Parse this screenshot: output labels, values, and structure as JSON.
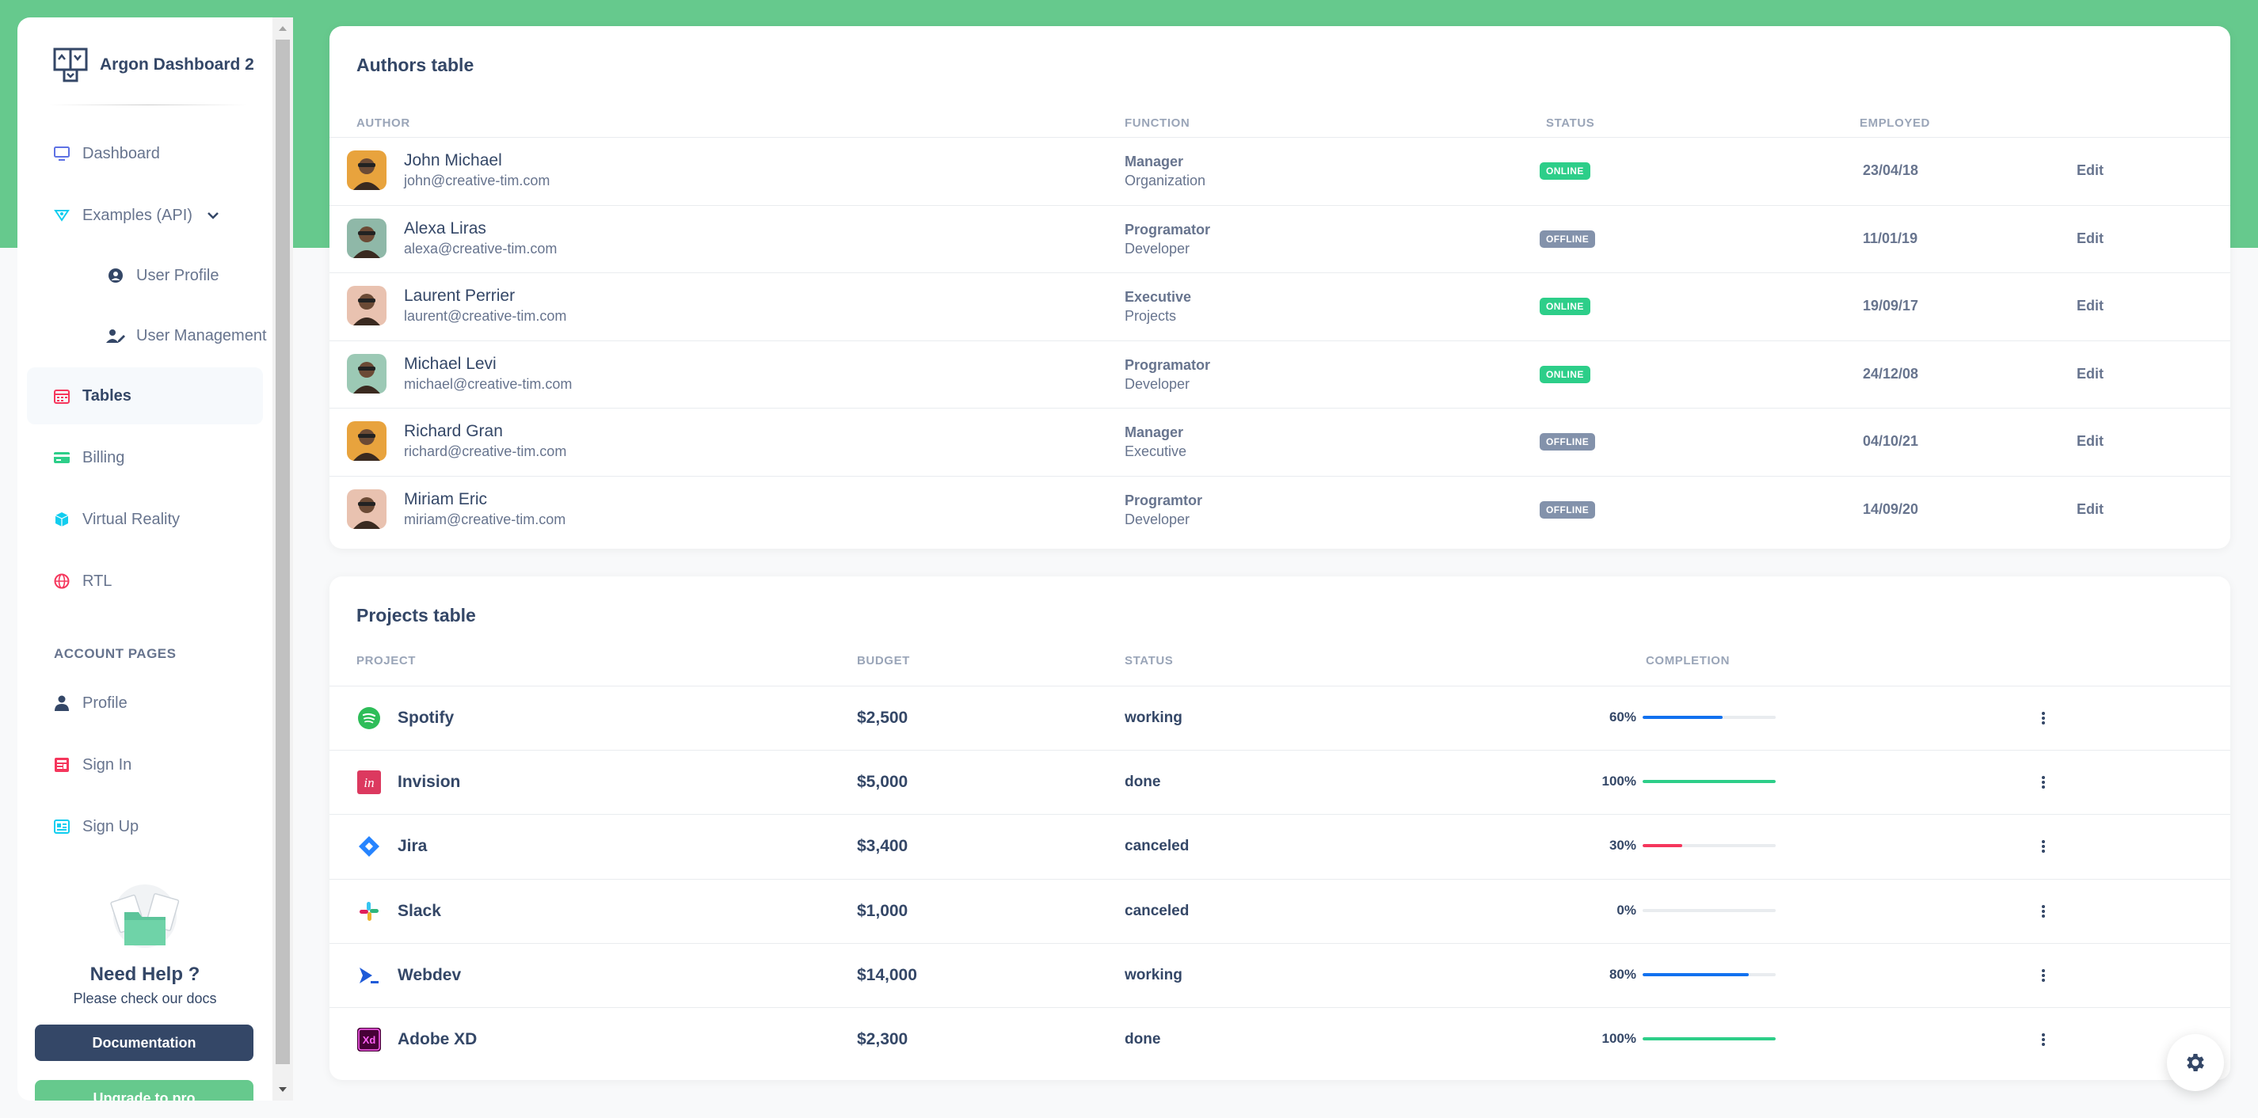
{
  "brand": {
    "name": "Argon Dashboard 2"
  },
  "sidebar": {
    "items": [
      {
        "label": "Dashboard",
        "icon": "monitor-icon"
      },
      {
        "label": "Examples (API)",
        "icon": "api-icon"
      },
      {
        "label": "User Profile",
        "icon": "user-circle-icon"
      },
      {
        "label": "User Management",
        "icon": "user-edit-icon"
      },
      {
        "label": "Tables",
        "icon": "calendar-grid-icon",
        "active": true
      },
      {
        "label": "Billing",
        "icon": "credit-card-icon"
      },
      {
        "label": "Virtual Reality",
        "icon": "cube-icon"
      },
      {
        "label": "RTL",
        "icon": "globe-icon"
      }
    ],
    "section_title": "ACCOUNT PAGES",
    "account_items": [
      {
        "label": "Profile",
        "icon": "person-icon"
      },
      {
        "label": "Sign In",
        "icon": "sign-in-icon"
      },
      {
        "label": "Sign Up",
        "icon": "sign-up-icon"
      }
    ],
    "help": {
      "title": "Need Help ?",
      "subtitle": "Please check our docs"
    },
    "docs_button": "Documentation",
    "upgrade_button": "Upgrade to pro"
  },
  "authors_table": {
    "title": "Authors table",
    "headers": [
      "Author",
      "Function",
      "Status",
      "Employed"
    ],
    "rows": [
      {
        "name": "John Michael",
        "email": "john@creative-tim.com",
        "role": "Manager",
        "dept": "Organization",
        "status": "Online",
        "employed": "23/04/18",
        "action": "Edit"
      },
      {
        "name": "Alexa Liras",
        "email": "alexa@creative-tim.com",
        "role": "Programator",
        "dept": "Developer",
        "status": "Offline",
        "employed": "11/01/19",
        "action": "Edit"
      },
      {
        "name": "Laurent Perrier",
        "email": "laurent@creative-tim.com",
        "role": "Executive",
        "dept": "Projects",
        "status": "Online",
        "employed": "19/09/17",
        "action": "Edit"
      },
      {
        "name": "Michael Levi",
        "email": "michael@creative-tim.com",
        "role": "Programator",
        "dept": "Developer",
        "status": "Online",
        "employed": "24/12/08",
        "action": "Edit"
      },
      {
        "name": "Richard Gran",
        "email": "richard@creative-tim.com",
        "role": "Manager",
        "dept": "Executive",
        "status": "Offline",
        "employed": "04/10/21",
        "action": "Edit"
      },
      {
        "name": "Miriam Eric",
        "email": "miriam@creative-tim.com",
        "role": "Programtor",
        "dept": "Developer",
        "status": "Offline",
        "employed": "14/09/20",
        "action": "Edit"
      }
    ]
  },
  "projects_table": {
    "title": "Projects table",
    "headers": [
      "Project",
      "Budget",
      "Status",
      "Completion"
    ],
    "rows": [
      {
        "name": "Spotify",
        "icon": "spotify-icon",
        "budget": "$2,500",
        "status": "working",
        "completion_label": "60%",
        "completion": 60,
        "bar_color": "#1171ef"
      },
      {
        "name": "Invision",
        "icon": "invision-icon",
        "budget": "$5,000",
        "status": "done",
        "completion_label": "100%",
        "completion": 100,
        "bar_color": "#2dce89"
      },
      {
        "name": "Jira",
        "icon": "jira-icon",
        "budget": "$3,400",
        "status": "canceled",
        "completion_label": "30%",
        "completion": 30,
        "bar_color": "#f5365c"
      },
      {
        "name": "Slack",
        "icon": "slack-icon",
        "budget": "$1,000",
        "status": "canceled",
        "completion_label": "0%",
        "completion": 0,
        "bar_color": "#2dce89"
      },
      {
        "name": "Webdev",
        "icon": "webdev-icon",
        "budget": "$14,000",
        "status": "working",
        "completion_label": "80%",
        "completion": 80,
        "bar_color": "#1171ef"
      },
      {
        "name": "Adobe XD",
        "icon": "adobe-xd-icon",
        "budget": "$2,300",
        "status": "done",
        "completion_label": "100%",
        "completion": 100,
        "bar_color": "#2dce89"
      }
    ]
  },
  "colors": {
    "accent_green": "#66c98d",
    "primary_dark": "#344767",
    "online": "#2dce89",
    "offline": "#8392ab"
  }
}
